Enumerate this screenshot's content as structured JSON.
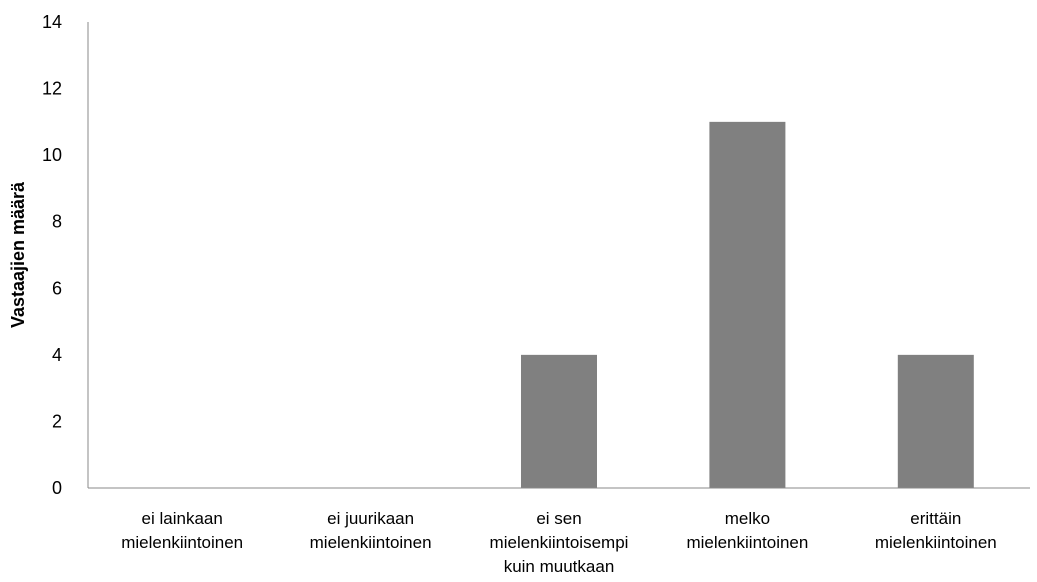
{
  "chart_data": {
    "type": "bar",
    "title": "",
    "xlabel": "",
    "ylabel": "Vastaajien määrä",
    "ylim": [
      0,
      14
    ],
    "yticks": [
      0,
      2,
      4,
      6,
      8,
      10,
      12,
      14
    ],
    "grid": false,
    "legend": "none",
    "categories": [
      [
        "ei lainkaan",
        "mielenkiintoinen"
      ],
      [
        "ei juurikaan",
        "mielenkiintoinen"
      ],
      [
        "ei sen",
        "mielenkiintoisempi",
        "kuin muutkaan"
      ],
      [
        "melko",
        "mielenkiintoinen"
      ],
      [
        "erittäin",
        "mielenkiintoinen"
      ]
    ],
    "values": [
      0,
      0,
      4,
      11,
      4
    ],
    "bar_color": "#808080",
    "axis_color": "#888888"
  }
}
